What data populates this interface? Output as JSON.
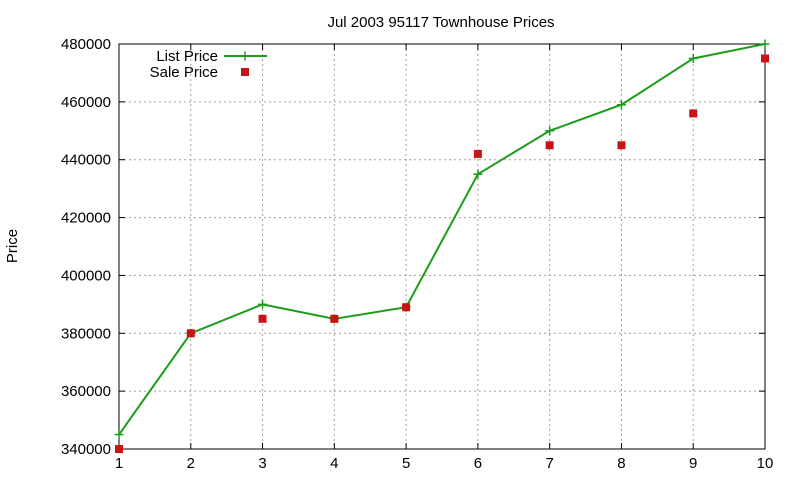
{
  "chart_data": {
    "type": "line",
    "title": "Jul 2003 95117 Townhouse Prices",
    "xlabel": "",
    "ylabel": "Price",
    "x": [
      1,
      2,
      3,
      4,
      5,
      6,
      7,
      8,
      9,
      10
    ],
    "xlim": [
      1,
      10
    ],
    "ylim": [
      340000,
      480000
    ],
    "x_ticks": [
      "1",
      "2",
      "3",
      "4",
      "5",
      "6",
      "7",
      "8",
      "9",
      "10"
    ],
    "y_ticks": [
      "340000",
      "360000",
      "380000",
      "400000",
      "420000",
      "440000",
      "460000",
      "480000"
    ],
    "grid": true,
    "legend_position": "top-left",
    "series": [
      {
        "name": "List Price",
        "style": "lines-and-plus-points",
        "color": "#1a9e1a",
        "values": [
          345000,
          380000,
          390000,
          385000,
          389000,
          435000,
          450000,
          459000,
          475000,
          480000
        ]
      },
      {
        "name": "Sale Price",
        "style": "square-points",
        "color": "#c81414",
        "values": [
          340000,
          380000,
          385000,
          385000,
          389000,
          442000,
          445000,
          445000,
          456000,
          475000
        ]
      }
    ]
  }
}
